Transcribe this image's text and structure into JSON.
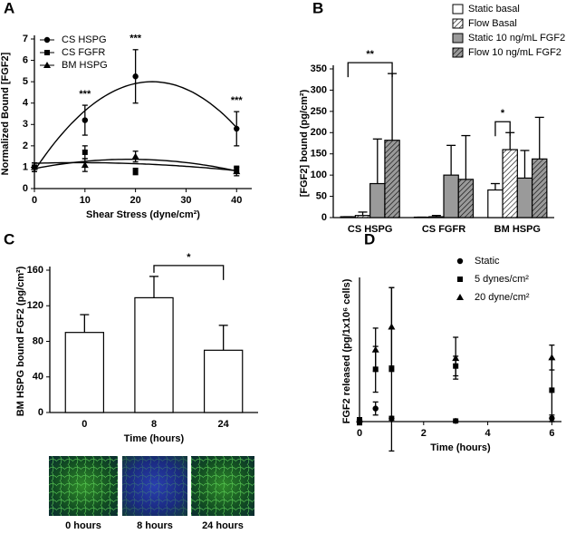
{
  "chart_data": [
    {
      "panel": "A",
      "type": "line",
      "xlabel": "Shear Stress (dyne/cm²)",
      "ylabel": "Normalized Bound [FGF2]",
      "x": [
        0,
        10,
        20,
        40
      ],
      "xlim": [
        0,
        43
      ],
      "xticks": [
        0,
        10,
        20,
        30,
        40
      ],
      "ylim": [
        0,
        7
      ],
      "yticks": [
        0,
        1,
        2,
        3,
        4,
        5,
        6,
        7
      ],
      "fit": "quadratic",
      "series": [
        {
          "name": "CS HSPG",
          "marker": "circle",
          "color": "#000",
          "values": [
            1.0,
            3.2,
            5.25,
            2.8
          ],
          "errors": [
            0.2,
            0.7,
            1.25,
            0.8
          ]
        },
        {
          "name": "CS FGFR",
          "marker": "square",
          "color": "#000",
          "values": [
            1.0,
            1.7,
            0.8,
            0.9
          ],
          "errors": [
            0.2,
            0.3,
            0.15,
            0.15
          ]
        },
        {
          "name": "BM HSPG",
          "marker": "triangle",
          "color": "#000",
          "values": [
            1.0,
            1.1,
            1.5,
            0.8
          ],
          "errors": [
            0.2,
            0.3,
            0.25,
            0.2
          ]
        }
      ],
      "annotations": [
        "***",
        "***",
        "***"
      ]
    },
    {
      "panel": "B",
      "type": "bar",
      "ylabel": "[FGF2] bound (pg/cm²)",
      "categories": [
        "CS HSPG",
        "CS FGFR",
        "BM HSPG"
      ],
      "ylim": [
        0,
        350
      ],
      "yticks": [
        0,
        50,
        100,
        150,
        200,
        250,
        300,
        350
      ],
      "series": [
        {
          "name": "Static basal",
          "color": "#ffffff",
          "hatch": false,
          "values": [
            2,
            1,
            65
          ],
          "errors": [
            0,
            0,
            15
          ]
        },
        {
          "name": "Flow Basal",
          "color": "#ffffff",
          "hatch": true,
          "values": [
            5,
            2,
            160
          ],
          "errors": [
            8,
            3,
            40
          ]
        },
        {
          "name": "Static 10 ng/mL FGF2",
          "color": "#9a9a9a",
          "hatch": false,
          "values": [
            80,
            100,
            93
          ],
          "errors": [
            105,
            70,
            65
          ]
        },
        {
          "name": "Flow 10 ng/mL FGF2",
          "color": "#9a9a9a",
          "hatch": true,
          "values": [
            182,
            90,
            138
          ],
          "errors": [
            157,
            103,
            98
          ]
        }
      ],
      "annotations": [
        "**",
        "*"
      ]
    },
    {
      "panel": "C",
      "type": "bar",
      "xlabel": "Time (hours)",
      "ylabel": "BM HSPG bound FGF2 (pg/cm²)",
      "categories": [
        "0",
        "8",
        "24"
      ],
      "ylim": [
        0,
        160
      ],
      "yticks": [
        0,
        40,
        80,
        120,
        160
      ],
      "series": [
        {
          "color": "#ffffff",
          "hatch": false,
          "values": [
            90,
            129,
            70
          ],
          "errors": [
            20,
            24,
            28
          ]
        }
      ],
      "annotations": [
        "*"
      ],
      "images": [
        "0 hours",
        "8 hours",
        "24 hours"
      ]
    },
    {
      "panel": "D",
      "type": "scatter",
      "xlabel": "Time (hours)",
      "ylabel": "FGF2 released (pg/1x10⁶ cells)",
      "x": [
        0,
        0.5,
        1,
        3,
        6
      ],
      "xlim": [
        0,
        6.3
      ],
      "xticks": [
        0,
        2,
        4,
        6
      ],
      "ylim": [
        0,
        21.5
      ],
      "series": [
        {
          "name": "Static",
          "marker": "circle",
          "color": "#000",
          "values": [
            0.2,
            2,
            0.5,
            0.1,
            0.5
          ],
          "errors": [
            0.4,
            1,
            0.3,
            0.3,
            0.5
          ]
        },
        {
          "name": "5 dynes/cm²",
          "marker": "square",
          "color": "#000",
          "values": [
            0,
            8,
            8,
            8.5,
            4.8
          ],
          "errors": [
            0.5,
            3.5,
            12.5,
            1.5,
            4.8
          ]
        },
        {
          "name": "20 dyne/cm²",
          "marker": "triangle",
          "color": "#000",
          "values": [
            0.3,
            11,
            14.5,
            9.7,
            9.8
          ],
          "errors": [
            0.3,
            3.3,
            6,
            3.2,
            1.9
          ]
        }
      ]
    }
  ]
}
